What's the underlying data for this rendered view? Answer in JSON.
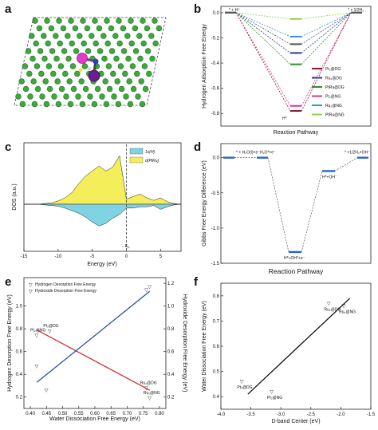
{
  "panels": {
    "a": {
      "label": "a"
    },
    "b": {
      "label": "b"
    },
    "c": {
      "label": "c"
    },
    "d": {
      "label": "d"
    },
    "e": {
      "label": "e"
    },
    "f": {
      "label": "f"
    }
  },
  "chart_data": [
    {
      "panel": "b",
      "type": "line",
      "title": "",
      "xlabel": "Reaction Pathway",
      "ylabel": "Hydrogen Adsorption Free Energy",
      "ylim": [
        -0.9,
        0.05
      ],
      "yticks": [
        "0.0",
        "-0.2",
        "-0.4",
        "-0.6",
        "-0.8"
      ],
      "yticks_values": [
        0.0,
        -0.2,
        -0.4,
        -0.6,
        -0.8
      ],
      "state_labels": [
        "* + H⁺",
        "H*",
        "* + 1/2H₂"
      ],
      "legend_position": "bottom-right",
      "series": [
        {
          "name": "Pt₂@DG",
          "color": "#8b1a2e",
          "values": [
            0,
            -0.78,
            0
          ]
        },
        {
          "name": "Ru₂@DG",
          "color": "#2a3a8c",
          "values": [
            0,
            -0.32,
            0
          ]
        },
        {
          "name": "PtRu@DG",
          "color": "#2e8b2e",
          "values": [
            0,
            -0.41,
            0
          ]
        },
        {
          "name": "Pt₂@NG",
          "color": "#d6388e",
          "values": [
            0,
            -0.74,
            0
          ]
        },
        {
          "name": "Ru₂@NG",
          "color": "#3b8fd6",
          "values": [
            0,
            -0.19,
            0
          ]
        },
        {
          "name": "PtRu@NG",
          "color": "#8fd14a",
          "values": [
            0,
            -0.05,
            0
          ]
        },
        {
          "name": "",
          "color": "#555555",
          "values": [
            0,
            -0.25,
            0
          ]
        }
      ]
    },
    {
      "panel": "c",
      "type": "area",
      "title": "",
      "xlabel": "Energy (eV)",
      "ylabel": "DOS (a.u.)",
      "xlim": [
        -15,
        8
      ],
      "xticks": [
        "-15",
        "-10",
        "-5",
        "0",
        "5"
      ],
      "xticks_values": [
        -15,
        -10,
        -5,
        0,
        5
      ],
      "annotation": "E_F",
      "annotation_label": "←E",
      "annotation_sub": "F",
      "legend": [
        {
          "name": "1s(H)",
          "color": "#7fd3e3"
        },
        {
          "name": "d(PtRu)",
          "color": "#f4ee5a"
        }
      ],
      "series": [
        {
          "name": "d(PtRu)",
          "x": [
            -15,
            -13,
            -12,
            -11,
            -10,
            -9,
            -8,
            -7,
            -6,
            -5,
            -4,
            -3,
            -2,
            -1,
            0,
            1,
            2,
            3,
            4,
            5,
            6,
            7,
            8
          ],
          "values": [
            0,
            0,
            0.05,
            0.1,
            0.25,
            0.5,
            0.9,
            1.6,
            2.2,
            2.6,
            3.0,
            2.6,
            2.9,
            3.8,
            0.4,
            0.6,
            0.8,
            0.5,
            0.3,
            0.5,
            0.2,
            0.05,
            0
          ]
        },
        {
          "name": "1s(H)",
          "x": [
            -15,
            -13,
            -12,
            -11,
            -10,
            -9,
            -8,
            -7,
            -6,
            -5,
            -4,
            -3,
            -2,
            -1,
            0,
            1,
            2,
            3,
            4,
            5,
            6,
            7,
            8
          ],
          "values": [
            0,
            0,
            -0.05,
            -0.1,
            -0.15,
            -0.3,
            -0.5,
            -0.7,
            -1.0,
            -1.4,
            -1.7,
            -1.5,
            -1.1,
            -0.8,
            -0.3,
            -0.3,
            -0.2,
            -0.2,
            -0.1,
            -0.4,
            -0.2,
            -0.05,
            0
          ]
        }
      ]
    },
    {
      "panel": "d",
      "type": "line",
      "title": "",
      "xlabel": "Reaction Pathway",
      "ylabel": "Gibbs Free Energy Difference (eV)",
      "ylim": [
        -1.5,
        0.2
      ],
      "yticks": [
        "0.0",
        "-0.5",
        "-1.0",
        "-1.5"
      ],
      "yticks_values": [
        0.0,
        -0.5,
        -1.0,
        -1.5
      ],
      "states": [
        {
          "label": "* + H₂O(l)+e⁻",
          "value": 0.0
        },
        {
          "label": "H₂O*+e⁻",
          "value": 0.0
        },
        {
          "label": "H*+OH*+e⁻",
          "value": -1.34
        },
        {
          "label": "H*+OH⁻",
          "value": -0.19
        },
        {
          "label": "* +1/2H₂+OH⁻",
          "value": 0.0
        }
      ]
    },
    {
      "panel": "e",
      "type": "scatter",
      "title": "",
      "xlabel": "Water Dissociation Free Energy (eV)",
      "ylabel": "Hydrogen Desorption Free Energy (eV)",
      "y2label": "Hydroxide Desorption Free Energy (eV)",
      "xlim": [
        0.38,
        0.82
      ],
      "ylim": [
        0.1,
        1.25
      ],
      "y2lim": [
        0.1,
        1.25
      ],
      "xticks": [
        "0.40",
        "0.45",
        "0.50",
        "0.55",
        "0.60",
        "0.65",
        "0.70",
        "0.75",
        "0.80"
      ],
      "xticks_values": [
        0.4,
        0.45,
        0.5,
        0.55,
        0.6,
        0.65,
        0.7,
        0.75,
        0.8
      ],
      "yticks": [
        "0.2",
        "0.4",
        "0.6",
        "0.8",
        "1.0"
      ],
      "yticks_values": [
        0.2,
        0.4,
        0.6,
        0.8,
        1.0
      ],
      "y2ticks": [
        "0.2",
        "0.4",
        "0.6",
        "0.8",
        "1.0",
        "1.2"
      ],
      "y2ticks_values": [
        0.2,
        0.4,
        0.6,
        0.8,
        1.0,
        1.2
      ],
      "legend_position": "top-left",
      "series": [
        {
          "name": "Hydrogen Desorption Free Energy",
          "color": "#cc3333",
          "axis": "left",
          "points": [
            {
              "x": 0.42,
              "y": 0.74,
              "label": "Pt₂@NG"
            },
            {
              "x": 0.46,
              "y": 0.78,
              "label": "Pt₂@DG"
            },
            {
              "x": 0.76,
              "y": 0.28,
              "label": "Ru₂@DG"
            },
            {
              "x": 0.77,
              "y": 0.19,
              "label": "Ru₂@NG"
            }
          ],
          "fit": {
            "x": [
              0.42,
              0.77
            ],
            "y": [
              0.79,
              0.26
            ]
          }
        },
        {
          "name": "Hydroxide Desorption Free Energy",
          "color": "#2a4bb0",
          "axis": "right",
          "points": [
            {
              "x": 0.42,
              "y": 0.47,
              "label": ""
            },
            {
              "x": 0.45,
              "y": 0.26,
              "label": ""
            },
            {
              "x": 0.76,
              "y": 1.14,
              "label": ""
            },
            {
              "x": 0.77,
              "y": 1.17,
              "label": ""
            }
          ],
          "fit": {
            "x": [
              0.42,
              0.77
            ],
            "y": [
              0.33,
              1.13
            ]
          }
        }
      ]
    },
    {
      "panel": "f",
      "type": "scatter",
      "title": "",
      "xlabel": "D-band Center (eV)",
      "ylabel": "Water Dissociation Free Energy (eV)",
      "xlim": [
        -4.0,
        -1.5
      ],
      "ylim": [
        0.35,
        0.85
      ],
      "xticks": [
        "-4.0",
        "-3.5",
        "-3.0",
        "-2.5",
        "-2.0",
        "-1.5"
      ],
      "xticks_values": [
        -4.0,
        -3.5,
        -3.0,
        -2.5,
        -2.0,
        -1.5
      ],
      "yticks": [
        "0.4",
        "0.5",
        "0.6",
        "0.7",
        "0.8"
      ],
      "yticks_values": [
        0.4,
        0.5,
        0.6,
        0.7,
        0.8
      ],
      "points": [
        {
          "x": -3.65,
          "y": 0.46,
          "label": "Pt₂@DG"
        },
        {
          "x": -3.15,
          "y": 0.42,
          "label": "Pt₂@NG"
        },
        {
          "x": -2.2,
          "y": 0.77,
          "label": "Ru₂@DG"
        },
        {
          "x": -1.95,
          "y": 0.76,
          "label": "Ru₂@NG"
        }
      ],
      "fit": {
        "x": [
          -3.55,
          -1.85
        ],
        "y": [
          0.41,
          0.79
        ]
      }
    }
  ]
}
